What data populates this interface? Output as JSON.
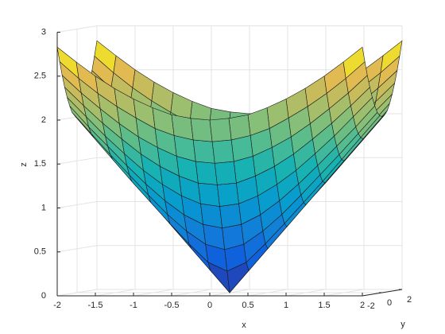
{
  "chart_data": {
    "type": "surface",
    "x": [
      -2,
      -1.75,
      -1.5,
      -1.25,
      -1,
      -0.75,
      -0.5,
      -0.25,
      0,
      0.25,
      0.5,
      0.75,
      1,
      1.25,
      1.5,
      1.75,
      2
    ],
    "y": [
      -2,
      -1.75,
      -1.5,
      -1.25,
      -1,
      -0.75,
      -0.5,
      -0.25,
      0,
      0.25,
      0.5,
      0.75,
      1,
      1.25,
      1.5,
      1.75,
      2
    ],
    "z": [
      [
        2.83,
        2.66,
        2.5,
        2.36,
        2.24,
        2.14,
        2.06,
        2.02,
        2,
        2.02,
        2.06,
        2.14,
        2.24,
        2.36,
        2.5,
        2.66,
        2.83
      ],
      [
        2.66,
        2.47,
        2.3,
        2.15,
        2.02,
        1.9,
        1.82,
        1.77,
        1.75,
        1.77,
        1.82,
        1.9,
        2.02,
        2.15,
        2.3,
        2.47,
        2.66
      ],
      [
        2.5,
        2.3,
        2.12,
        1.95,
        1.8,
        1.68,
        1.58,
        1.52,
        1.5,
        1.52,
        1.58,
        1.68,
        1.8,
        1.95,
        2.12,
        2.3,
        2.5
      ],
      [
        2.36,
        2.15,
        1.95,
        1.77,
        1.6,
        1.46,
        1.35,
        1.27,
        1.25,
        1.27,
        1.35,
        1.46,
        1.6,
        1.77,
        1.95,
        2.15,
        2.36
      ],
      [
        2.24,
        2.02,
        1.8,
        1.6,
        1.41,
        1.25,
        1.12,
        1.03,
        1,
        1.03,
        1.12,
        1.25,
        1.41,
        1.6,
        1.8,
        2.02,
        2.24
      ],
      [
        2.14,
        1.9,
        1.68,
        1.46,
        1.25,
        1.06,
        0.9,
        0.79,
        0.75,
        0.79,
        0.9,
        1.06,
        1.25,
        1.46,
        1.68,
        1.9,
        2.14
      ],
      [
        2.06,
        1.82,
        1.58,
        1.35,
        1.12,
        0.9,
        0.71,
        0.56,
        0.5,
        0.56,
        0.71,
        0.9,
        1.12,
        1.35,
        1.58,
        1.82,
        2.06
      ],
      [
        2.02,
        1.77,
        1.52,
        1.27,
        1.03,
        0.79,
        0.56,
        0.35,
        0.25,
        0.35,
        0.56,
        0.79,
        1.03,
        1.27,
        1.52,
        1.77,
        2.02
      ],
      [
        2,
        1.75,
        1.5,
        1.25,
        1,
        0.75,
        0.5,
        0.25,
        0,
        0.25,
        0.5,
        0.75,
        1,
        1.25,
        1.5,
        1.75,
        2
      ],
      [
        2.02,
        1.77,
        1.52,
        1.27,
        1.03,
        0.79,
        0.56,
        0.35,
        0.25,
        0.35,
        0.56,
        0.79,
        1.03,
        1.27,
        1.52,
        1.77,
        2.02
      ],
      [
        2.06,
        1.82,
        1.58,
        1.35,
        1.12,
        0.9,
        0.71,
        0.56,
        0.5,
        0.56,
        0.71,
        0.9,
        1.12,
        1.35,
        1.58,
        1.82,
        2.06
      ],
      [
        2.14,
        1.9,
        1.68,
        1.46,
        1.25,
        1.06,
        0.9,
        0.79,
        0.75,
        0.79,
        0.9,
        1.06,
        1.25,
        1.46,
        1.68,
        1.9,
        2.14
      ],
      [
        2.24,
        2.02,
        1.8,
        1.6,
        1.41,
        1.25,
        1.12,
        1.03,
        1,
        1.03,
        1.12,
        1.25,
        1.41,
        1.6,
        1.8,
        2.02,
        2.24
      ],
      [
        2.36,
        2.15,
        1.95,
        1.77,
        1.6,
        1.46,
        1.35,
        1.27,
        1.25,
        1.27,
        1.35,
        1.46,
        1.6,
        1.77,
        1.95,
        2.15,
        2.36
      ],
      [
        2.5,
        2.3,
        2.12,
        1.95,
        1.8,
        1.68,
        1.58,
        1.52,
        1.5,
        1.52,
        1.58,
        1.68,
        1.8,
        1.95,
        2.12,
        2.3,
        2.5
      ],
      [
        2.66,
        2.47,
        2.3,
        2.15,
        2.02,
        1.9,
        1.82,
        1.77,
        1.75,
        1.77,
        1.82,
        1.9,
        2.02,
        2.15,
        2.3,
        2.47,
        2.66
      ],
      [
        2.83,
        2.66,
        2.5,
        2.36,
        2.24,
        2.14,
        2.06,
        2.02,
        2,
        2.02,
        2.06,
        2.14,
        2.24,
        2.36,
        2.5,
        2.66,
        2.83
      ]
    ],
    "colormap": [
      "#352a87",
      "#0f5cdd",
      "#127dd8",
      "#079ccf",
      "#15b1b4",
      "#59bd8c",
      "#a5be6b",
      "#e1b952",
      "#f9fb0e"
    ],
    "xlabel": "x",
    "ylabel": "y",
    "zlabel": "z",
    "xlim": [
      -2,
      2
    ],
    "ylim": [
      -2,
      2
    ],
    "zlim": [
      0,
      3
    ],
    "xticks": [
      -2,
      -1.5,
      -1,
      -0.5,
      0,
      0.5,
      1,
      1.5,
      2
    ],
    "yticks": [
      -2,
      0,
      2
    ],
    "zticks": [
      0,
      0.5,
      1,
      1.5,
      2,
      2.5,
      3
    ],
    "grid": true
  }
}
